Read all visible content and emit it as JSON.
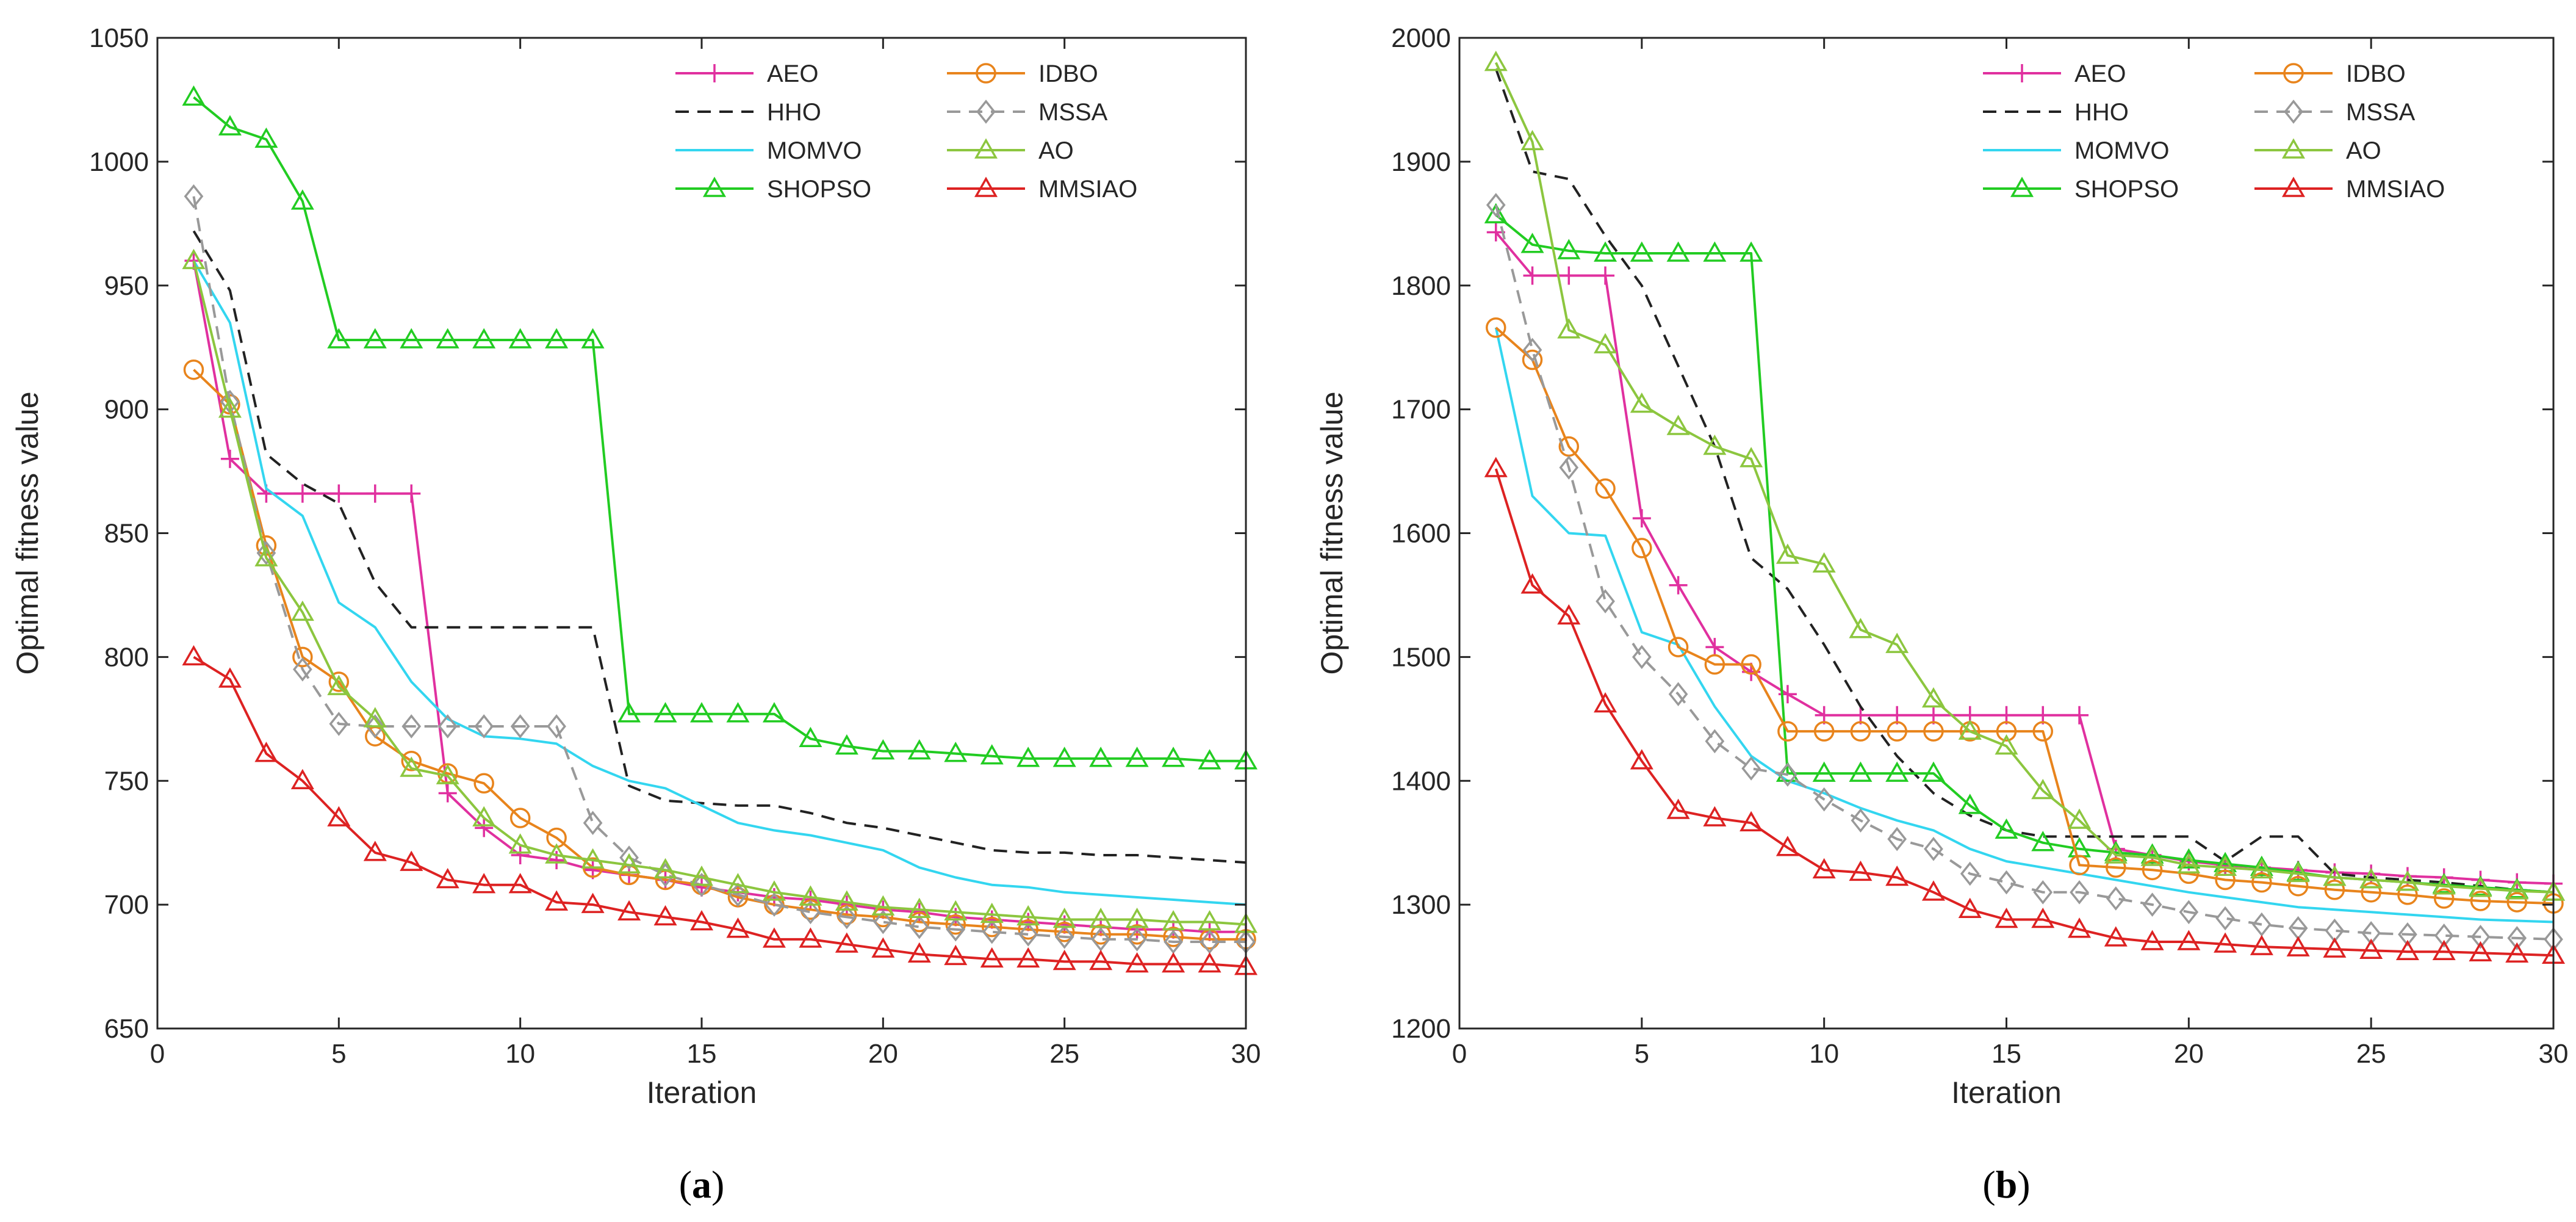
{
  "chart_data": [
    {
      "type": "line",
      "panel_label": "(a)",
      "panel_letter": "a",
      "xlabel": "Iteration",
      "ylabel": "Optimal fitness value",
      "xlim": [
        0,
        30
      ],
      "ylim": [
        650,
        1050
      ],
      "xticks": [
        0,
        5,
        10,
        15,
        20,
        25,
        30
      ],
      "yticks": [
        650,
        700,
        750,
        800,
        850,
        900,
        950,
        1000,
        1050
      ],
      "legend_position": "top-right",
      "x": [
        1,
        2,
        3,
        4,
        5,
        6,
        7,
        8,
        9,
        10,
        11,
        12,
        13,
        14,
        15,
        16,
        17,
        18,
        19,
        20,
        21,
        22,
        23,
        24,
        25,
        26,
        27,
        28,
        29,
        30
      ],
      "series": [
        {
          "name": "AEO",
          "color": "#e0309f",
          "marker": "plus",
          "dash": "",
          "values": [
            960,
            880,
            866,
            866,
            866,
            866,
            866,
            745,
            731,
            720,
            718,
            714,
            712,
            710,
            707,
            705,
            703,
            702,
            700,
            698,
            697,
            695,
            694,
            693,
            692,
            691,
            690,
            690,
            689,
            689
          ]
        },
        {
          "name": "HHO",
          "color": "#222222",
          "marker": "none",
          "dash": "22,14",
          "values": [
            972,
            948,
            882,
            870,
            862,
            830,
            812,
            812,
            812,
            812,
            812,
            812,
            748,
            742,
            741,
            740,
            740,
            737,
            733,
            731,
            728,
            725,
            722,
            721,
            721,
            720,
            720,
            719,
            718,
            717
          ]
        },
        {
          "name": "MOMVO",
          "color": "#33d6f0",
          "marker": "none",
          "dash": "",
          "values": [
            960,
            935,
            868,
            857,
            822,
            812,
            790,
            775,
            768,
            767,
            765,
            756,
            750,
            747,
            740,
            733,
            730,
            728,
            725,
            722,
            715,
            711,
            708,
            707,
            705,
            704,
            703,
            702,
            701,
            700
          ]
        },
        {
          "name": "SHOPSO",
          "color": "#22cc22",
          "marker": "triangle",
          "dash": "",
          "values": [
            1026,
            1014,
            1009,
            984,
            928,
            928,
            928,
            928,
            928,
            928,
            928,
            928,
            777,
            777,
            777,
            777,
            777,
            767,
            764,
            762,
            762,
            761,
            760,
            759,
            759,
            759,
            759,
            759,
            758,
            758
          ]
        },
        {
          "name": "IDBO",
          "color": "#e8841c",
          "marker": "circle",
          "dash": "",
          "values": [
            916,
            902,
            845,
            800,
            790,
            768,
            758,
            753,
            749,
            735,
            727,
            715,
            712,
            710,
            708,
            703,
            700,
            698,
            696,
            695,
            693,
            692,
            691,
            690,
            689,
            688,
            688,
            687,
            686,
            686
          ]
        },
        {
          "name": "MSSA",
          "color": "#999999",
          "marker": "diamond",
          "dash": "22,14",
          "values": [
            986,
            903,
            842,
            795,
            773,
            772,
            772,
            772,
            772,
            772,
            772,
            733,
            719,
            712,
            708,
            704,
            700,
            697,
            695,
            693,
            691,
            690,
            689,
            688,
            687,
            686,
            686,
            685,
            685,
            685
          ]
        },
        {
          "name": "AO",
          "color": "#8cc63f",
          "marker": "triangle",
          "dash": "",
          "values": [
            960,
            900,
            840,
            818,
            788,
            775,
            755,
            752,
            735,
            724,
            720,
            718,
            716,
            714,
            711,
            708,
            705,
            703,
            701,
            699,
            698,
            697,
            696,
            695,
            694,
            694,
            694,
            693,
            693,
            692
          ]
        },
        {
          "name": "MMSIAO",
          "color": "#dd2222",
          "marker": "triangle",
          "dash": "",
          "values": [
            800,
            791,
            761,
            750,
            735,
            721,
            717,
            710,
            708,
            708,
            701,
            700,
            697,
            695,
            693,
            690,
            686,
            686,
            684,
            682,
            680,
            679,
            678,
            678,
            677,
            677,
            676,
            676,
            676,
            675
          ]
        }
      ]
    },
    {
      "type": "line",
      "panel_label": "(b)",
      "panel_letter": "b",
      "xlabel": "Iteration",
      "ylabel": "Optimal fitness value",
      "xlim": [
        0,
        30
      ],
      "ylim": [
        1200,
        2000
      ],
      "xticks": [
        0,
        5,
        10,
        15,
        20,
        25,
        30
      ],
      "yticks": [
        1200,
        1300,
        1400,
        1500,
        1600,
        1700,
        1800,
        1900,
        2000
      ],
      "legend_position": "top-right",
      "x": [
        1,
        2,
        3,
        4,
        5,
        6,
        7,
        8,
        9,
        10,
        11,
        12,
        13,
        14,
        15,
        16,
        17,
        18,
        19,
        20,
        21,
        22,
        23,
        24,
        25,
        26,
        27,
        28,
        29,
        30
      ],
      "series": [
        {
          "name": "AEO",
          "color": "#e0309f",
          "marker": "plus",
          "dash": "",
          "values": [
            1843,
            1808,
            1808,
            1808,
            1612,
            1558,
            1508,
            1488,
            1470,
            1453,
            1453,
            1453,
            1453,
            1453,
            1453,
            1453,
            1453,
            1345,
            1340,
            1335,
            1332,
            1330,
            1328,
            1326,
            1325,
            1323,
            1322,
            1320,
            1318,
            1317
          ]
        },
        {
          "name": "HHO",
          "color": "#222222",
          "marker": "none",
          "dash": "22,14",
          "values": [
            1975,
            1892,
            1886,
            1840,
            1800,
            1735,
            1670,
            1580,
            1555,
            1510,
            1460,
            1420,
            1390,
            1372,
            1360,
            1355,
            1355,
            1355,
            1355,
            1355,
            1335,
            1355,
            1355,
            1325,
            1322,
            1320,
            1318,
            1315,
            1312,
            1310
          ]
        },
        {
          "name": "MOMVO",
          "color": "#33d6f0",
          "marker": "none",
          "dash": "",
          "values": [
            1766,
            1630,
            1600,
            1598,
            1520,
            1510,
            1460,
            1420,
            1400,
            1390,
            1378,
            1368,
            1360,
            1345,
            1335,
            1330,
            1325,
            1320,
            1315,
            1310,
            1306,
            1302,
            1298,
            1296,
            1294,
            1292,
            1290,
            1288,
            1287,
            1286
          ]
        },
        {
          "name": "SHOPSO",
          "color": "#22cc22",
          "marker": "triangle",
          "dash": "",
          "values": [
            1857,
            1833,
            1828,
            1826,
            1826,
            1826,
            1826,
            1826,
            1406,
            1406,
            1406,
            1406,
            1406,
            1380,
            1360,
            1350,
            1345,
            1342,
            1340,
            1336,
            1333,
            1330,
            1326,
            1322,
            1320,
            1318,
            1316,
            1314,
            1312,
            1310
          ]
        },
        {
          "name": "IDBO",
          "color": "#e8841c",
          "marker": "circle",
          "dash": "",
          "values": [
            1766,
            1740,
            1670,
            1636,
            1588,
            1508,
            1494,
            1494,
            1440,
            1440,
            1440,
            1440,
            1440,
            1440,
            1440,
            1440,
            1332,
            1330,
            1328,
            1325,
            1320,
            1318,
            1315,
            1312,
            1310,
            1308,
            1305,
            1303,
            1302,
            1301
          ]
        },
        {
          "name": "MSSA",
          "color": "#999999",
          "marker": "diamond",
          "dash": "22,14",
          "values": [
            1865,
            1748,
            1653,
            1545,
            1500,
            1470,
            1432,
            1410,
            1405,
            1385,
            1368,
            1353,
            1345,
            1325,
            1318,
            1310,
            1310,
            1305,
            1300,
            1294,
            1289,
            1284,
            1281,
            1279,
            1277,
            1276,
            1275,
            1274,
            1273,
            1272
          ]
        },
        {
          "name": "AO",
          "color": "#8cc63f",
          "marker": "triangle",
          "dash": "",
          "values": [
            1980,
            1916,
            1764,
            1752,
            1704,
            1686,
            1670,
            1660,
            1582,
            1575,
            1522,
            1510,
            1466,
            1440,
            1428,
            1392,
            1368,
            1340,
            1338,
            1332,
            1330,
            1328,
            1325,
            1322,
            1320,
            1318,
            1315,
            1313,
            1311,
            1310
          ]
        },
        {
          "name": "MMSIAO",
          "color": "#dd2222",
          "marker": "triangle",
          "dash": "",
          "values": [
            1652,
            1558,
            1533,
            1462,
            1416,
            1376,
            1370,
            1366,
            1346,
            1328,
            1326,
            1322,
            1310,
            1296,
            1288,
            1288,
            1280,
            1273,
            1270,
            1270,
            1268,
            1266,
            1265,
            1264,
            1263,
            1262,
            1262,
            1261,
            1260,
            1259
          ]
        }
      ]
    }
  ]
}
